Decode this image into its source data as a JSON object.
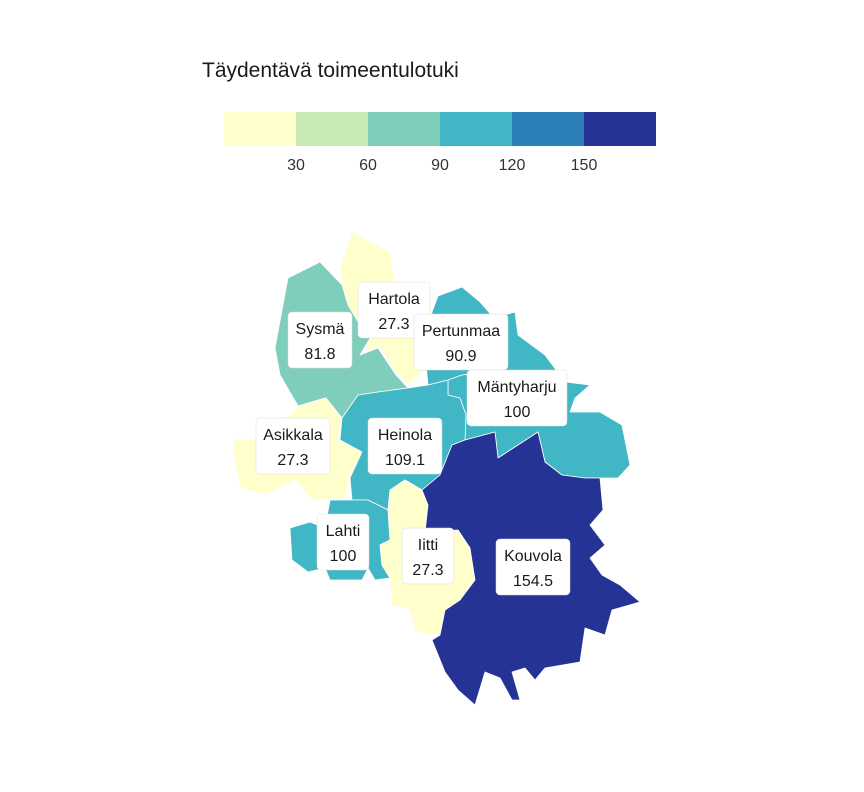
{
  "legend": {
    "title": "Täydentävä toimeentulotuki",
    "colors": [
      "#ffffcc",
      "#c7e9b4",
      "#7fcdbb",
      "#41b6c4",
      "#2c7fb8",
      "#253494"
    ],
    "ticks": [
      "30",
      "60",
      "90",
      "120",
      "150"
    ]
  },
  "regions": [
    {
      "name": "Hartola",
      "value": "27.3",
      "color": "#ffffcc"
    },
    {
      "name": "Sysmä",
      "value": "81.8",
      "color": "#7fcdbb"
    },
    {
      "name": "Pertunmaa",
      "value": "90.9",
      "color": "#41b6c4"
    },
    {
      "name": "Mäntyharju",
      "value": "100",
      "color": "#41b6c4"
    },
    {
      "name": "Asikkala",
      "value": "27.3",
      "color": "#ffffcc"
    },
    {
      "name": "Heinola",
      "value": "109.1",
      "color": "#41b6c4"
    },
    {
      "name": "Lahti",
      "value": "100",
      "color": "#41b6c4"
    },
    {
      "name": "Iitti",
      "value": "27.3",
      "color": "#ffffcc"
    },
    {
      "name": "Kouvola",
      "value": "154.5",
      "color": "#253494"
    }
  ]
}
